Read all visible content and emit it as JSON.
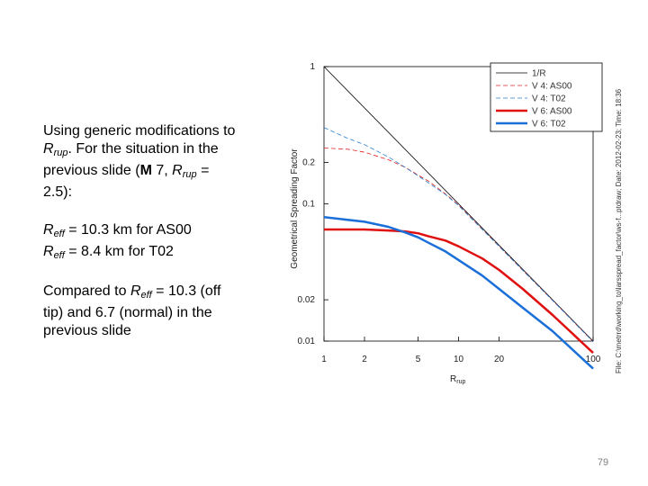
{
  "text": {
    "intro_lines": [
      "Using generic modifications to",
      "R",
      "rup",
      ".  For the situation in the",
      "previous slide (",
      "M",
      " 7, ",
      "R",
      "rup",
      " =",
      "2.5):"
    ],
    "reff": [
      {
        "symbol": "R",
        "sub": "eff",
        "text": " = 10.3 km for AS00"
      },
      {
        "symbol": "R",
        "sub": "eff",
        "text": " = 8.4 km for T02"
      }
    ],
    "compare_lines": [
      "Compared to ",
      "R",
      "eff",
      " = 10.3 (off",
      "tip) and 6.7 (normal) in the",
      "previous slide"
    ]
  },
  "side_note": "File: C:\\metrrd\\working_to\\larsspread_factor\\ws-f...ptdraw; Date: 2012-02-23; Time: 18:36",
  "page_number": "79",
  "chart_data": {
    "type": "line",
    "xscale": "log",
    "yscale": "log",
    "xlim": [
      1,
      100
    ],
    "ylim": [
      0.01,
      1
    ],
    "ylabel": "Geometrical Spreading Factor",
    "xlabel": "R",
    "xlabel_sub": "rup",
    "xticks": [
      {
        "value": 1,
        "label": "1"
      },
      {
        "value": 2,
        "label": "2"
      },
      {
        "value": 5,
        "label": "5"
      },
      {
        "value": 10,
        "label": "10"
      },
      {
        "value": 20,
        "label": "20"
      },
      {
        "value": 100,
        "label": "100"
      }
    ],
    "yticks": [
      {
        "value": 1,
        "label": "1"
      },
      {
        "value": 0.2,
        "label": "0.2"
      },
      {
        "value": 0.1,
        "label": "0.1"
      },
      {
        "value": 0.02,
        "label": "0.02"
      },
      {
        "value": 0.01,
        "label": "0.01"
      }
    ],
    "legend_position": "top-right",
    "series": [
      {
        "name": "1/R",
        "color": "#000000",
        "width": 0.8,
        "dash": "",
        "x": [
          1,
          100
        ],
        "y": [
          1,
          0.01
        ]
      },
      {
        "name": "V 4: AS00",
        "color": "#e02020",
        "width": 0.8,
        "dash": "5,3",
        "x": [
          1,
          1.5,
          2,
          3,
          4,
          5,
          6,
          8,
          10,
          20,
          50,
          100
        ],
        "y": [
          0.255,
          0.25,
          0.238,
          0.21,
          0.185,
          0.162,
          0.146,
          0.118,
          0.098,
          0.049,
          0.0198,
          0.0099
        ]
      },
      {
        "name": "V 4: T02",
        "color": "#2a7fd4",
        "width": 0.8,
        "dash": "5,3",
        "x": [
          1,
          1.5,
          2,
          3,
          4,
          5,
          6,
          8,
          10,
          20,
          50,
          100
        ],
        "y": [
          0.36,
          0.3,
          0.27,
          0.22,
          0.185,
          0.16,
          0.142,
          0.117,
          0.097,
          0.049,
          0.0198,
          0.0099
        ]
      },
      {
        "name": "V 6: AS00",
        "color": "#e01010",
        "width": 2.5,
        "dash": "",
        "x": [
          1,
          2,
          3,
          4,
          5,
          6,
          8,
          10,
          15,
          20,
          30,
          50,
          100
        ],
        "y": [
          0.065,
          0.065,
          0.064,
          0.063,
          0.061,
          0.058,
          0.054,
          0.049,
          0.04,
          0.033,
          0.024,
          0.0155,
          0.0082
        ]
      },
      {
        "name": "V 6: T02",
        "color": "#1a6fd8",
        "width": 2.5,
        "dash": "",
        "x": [
          1,
          2,
          3,
          4,
          5,
          6,
          8,
          10,
          15,
          20,
          30,
          50,
          100
        ],
        "y": [
          0.08,
          0.074,
          0.068,
          0.062,
          0.057,
          0.052,
          0.045,
          0.039,
          0.03,
          0.024,
          0.0175,
          0.0118,
          0.0063
        ]
      }
    ]
  }
}
